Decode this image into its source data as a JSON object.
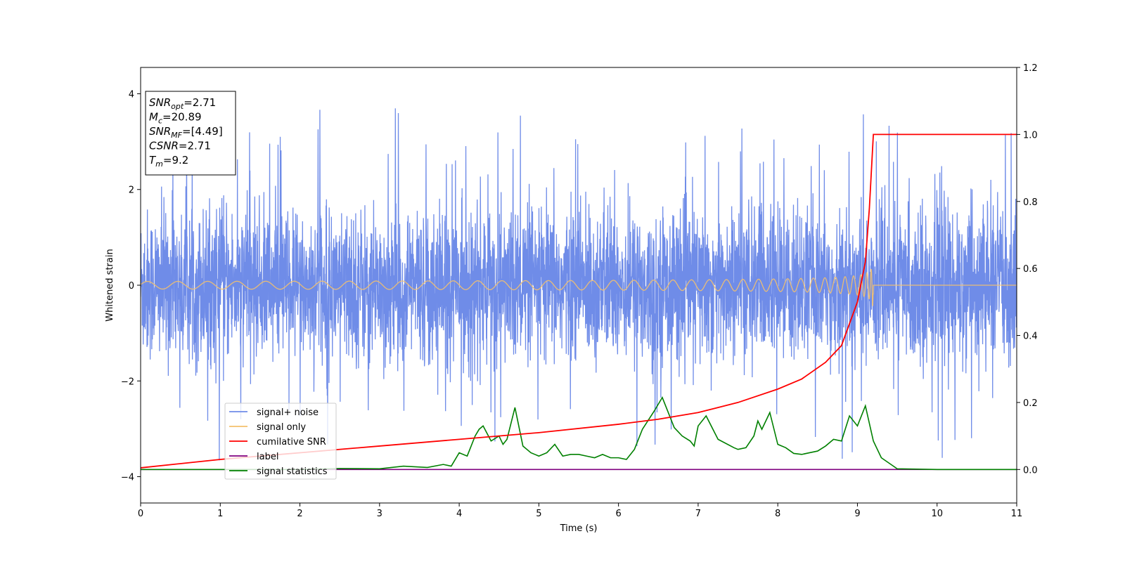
{
  "chart_data": {
    "type": "line",
    "xlabel": "Time (s)",
    "ylabel": "Whitened strain",
    "xlim": [
      0,
      11
    ],
    "ylim": [
      -4.55,
      4.55
    ],
    "y2lim": [
      -0.1,
      1.2
    ],
    "x_ticks": [
      "0",
      "1",
      "2",
      "3",
      "4",
      "5",
      "6",
      "7",
      "8",
      "9",
      "10",
      "11"
    ],
    "y_ticks": [
      "4",
      "2",
      "0",
      "−2",
      "−4"
    ],
    "y_tick_values": [
      4,
      2,
      0,
      -2,
      -4
    ],
    "y2_ticks": [
      "1.2",
      "1.0",
      "0.8",
      "0.6",
      "0.4",
      "0.2",
      "0.0"
    ],
    "y2_tick_values": [
      1.2,
      1.0,
      0.8,
      0.6,
      0.4,
      0.2,
      0.0
    ],
    "legend_position": "lower-left",
    "series": [
      {
        "name": "signal+ noise",
        "axis": "left",
        "color": "#6f8ce8",
        "description_values": {
          "approx_range": [
            -4.2,
            3.9
          ],
          "typical_band": [
            -1.5,
            1.5
          ]
        }
      },
      {
        "name": "signal only",
        "axis": "left",
        "color": "#f5c16b",
        "chirp_end_time": 9.2,
        "peak_amplitude": 0.55
      },
      {
        "name": "cumilative SNR",
        "axis": "right",
        "color": "#ff0000",
        "x": [
          0,
          1,
          2,
          3,
          4,
          5,
          6,
          6.5,
          7,
          7.5,
          8,
          8.3,
          8.6,
          8.8,
          9.0,
          9.1,
          9.15,
          9.2,
          9.25,
          11
        ],
        "values": [
          0.005,
          0.03,
          0.05,
          0.07,
          0.09,
          0.11,
          0.135,
          0.15,
          0.17,
          0.2,
          0.24,
          0.27,
          0.32,
          0.37,
          0.5,
          0.62,
          0.78,
          1.0,
          1.0,
          1.0
        ]
      },
      {
        "name": "label",
        "axis": "right",
        "color": "#800080",
        "x": [
          0,
          11
        ],
        "values": [
          0.0,
          0.0
        ]
      },
      {
        "name": "signal statistics",
        "axis": "right",
        "color": "#008000",
        "x": [
          0,
          0.5,
          1,
          1.5,
          2,
          2.5,
          3,
          3.3,
          3.6,
          3.8,
          3.9,
          4.0,
          4.1,
          4.2,
          4.25,
          4.3,
          4.4,
          4.5,
          4.55,
          4.6,
          4.7,
          4.8,
          4.9,
          5.0,
          5.1,
          5.2,
          5.3,
          5.4,
          5.5,
          5.6,
          5.7,
          5.8,
          5.9,
          6.0,
          6.1,
          6.2,
          6.3,
          6.45,
          6.55,
          6.7,
          6.8,
          6.9,
          6.95,
          7.0,
          7.1,
          7.25,
          7.45,
          7.5,
          7.6,
          7.7,
          7.75,
          7.8,
          7.9,
          8.0,
          8.1,
          8.2,
          8.3,
          8.4,
          8.5,
          8.6,
          8.7,
          8.8,
          8.9,
          9.0,
          9.1,
          9.2,
          9.3,
          9.5,
          10,
          11
        ],
        "values": [
          0.0,
          0.0,
          0.0,
          0.0,
          0.0,
          0.003,
          0.002,
          0.01,
          0.006,
          0.015,
          0.01,
          0.05,
          0.04,
          0.1,
          0.12,
          0.13,
          0.085,
          0.1,
          0.075,
          0.09,
          0.185,
          0.07,
          0.05,
          0.04,
          0.05,
          0.075,
          0.04,
          0.045,
          0.045,
          0.04,
          0.035,
          0.045,
          0.035,
          0.035,
          0.03,
          0.06,
          0.12,
          0.175,
          0.215,
          0.125,
          0.1,
          0.085,
          0.07,
          0.13,
          0.16,
          0.09,
          0.065,
          0.06,
          0.065,
          0.1,
          0.145,
          0.12,
          0.17,
          0.075,
          0.065,
          0.048,
          0.045,
          0.05,
          0.055,
          0.07,
          0.09,
          0.085,
          0.16,
          0.13,
          0.19,
          0.085,
          0.035,
          0.002,
          0.0,
          0.0
        ]
      }
    ],
    "annotation": {
      "lines": [
        {
          "main": "SNR",
          "sub": "opt",
          "rest": "=2.71"
        },
        {
          "main": "M",
          "sub": "c",
          "rest": "=20.89"
        },
        {
          "main": "SNR",
          "sub": "MF",
          "rest": "=[4.49]"
        },
        {
          "main": "CSNR",
          "sub": "",
          "rest": "=2.71"
        },
        {
          "main": "T",
          "sub": "m",
          "rest": "=9.2"
        }
      ]
    }
  }
}
